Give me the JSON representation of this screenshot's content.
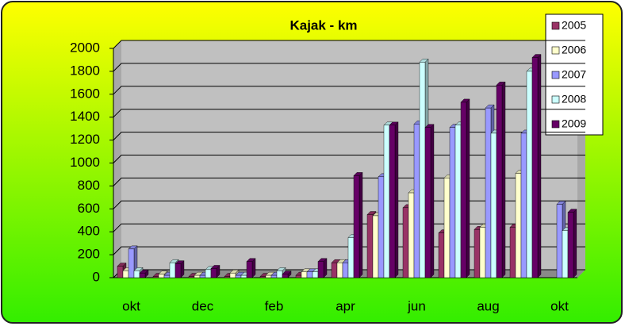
{
  "chart_data": {
    "type": "bar",
    "title": "Kajak - km",
    "categories": [
      "okt",
      null,
      "dec",
      null,
      "feb",
      null,
      "apr",
      null,
      "jun",
      null,
      "aug",
      null,
      "okt"
    ],
    "series": [
      {
        "name": "2005",
        "color": "#993366",
        "values": [
          100,
          10,
          10,
          10,
          10,
          20,
          130,
          550,
          610,
          390,
          420,
          440,
          null
        ]
      },
      {
        "name": "2006",
        "color": "#ffffcc",
        "values": [
          60,
          30,
          20,
          40,
          20,
          50,
          130,
          540,
          740,
          870,
          440,
          910,
          null
        ]
      },
      {
        "name": "2007",
        "color": "#9999ff",
        "values": [
          250,
          20,
          20,
          20,
          20,
          50,
          130,
          880,
          1340,
          1310,
          1480,
          1260,
          640
        ]
      },
      {
        "name": "2008",
        "color": "#ccffff",
        "values": [
          60,
          130,
          70,
          20,
          60,
          50,
          350,
          1330,
          1880,
          1330,
          1260,
          1800,
          410
        ]
      },
      {
        "name": "2009",
        "color": "#660066",
        "values": [
          40,
          120,
          80,
          140,
          30,
          140,
          890,
          1330,
          1310,
          1530,
          1680,
          1920,
          570
        ]
      }
    ],
    "ylim": [
      0,
      2000
    ],
    "yticks": [
      0,
      200,
      400,
      600,
      800,
      1000,
      1200,
      1400,
      1600,
      1800,
      2000
    ],
    "grid": true,
    "legend": "right"
  }
}
